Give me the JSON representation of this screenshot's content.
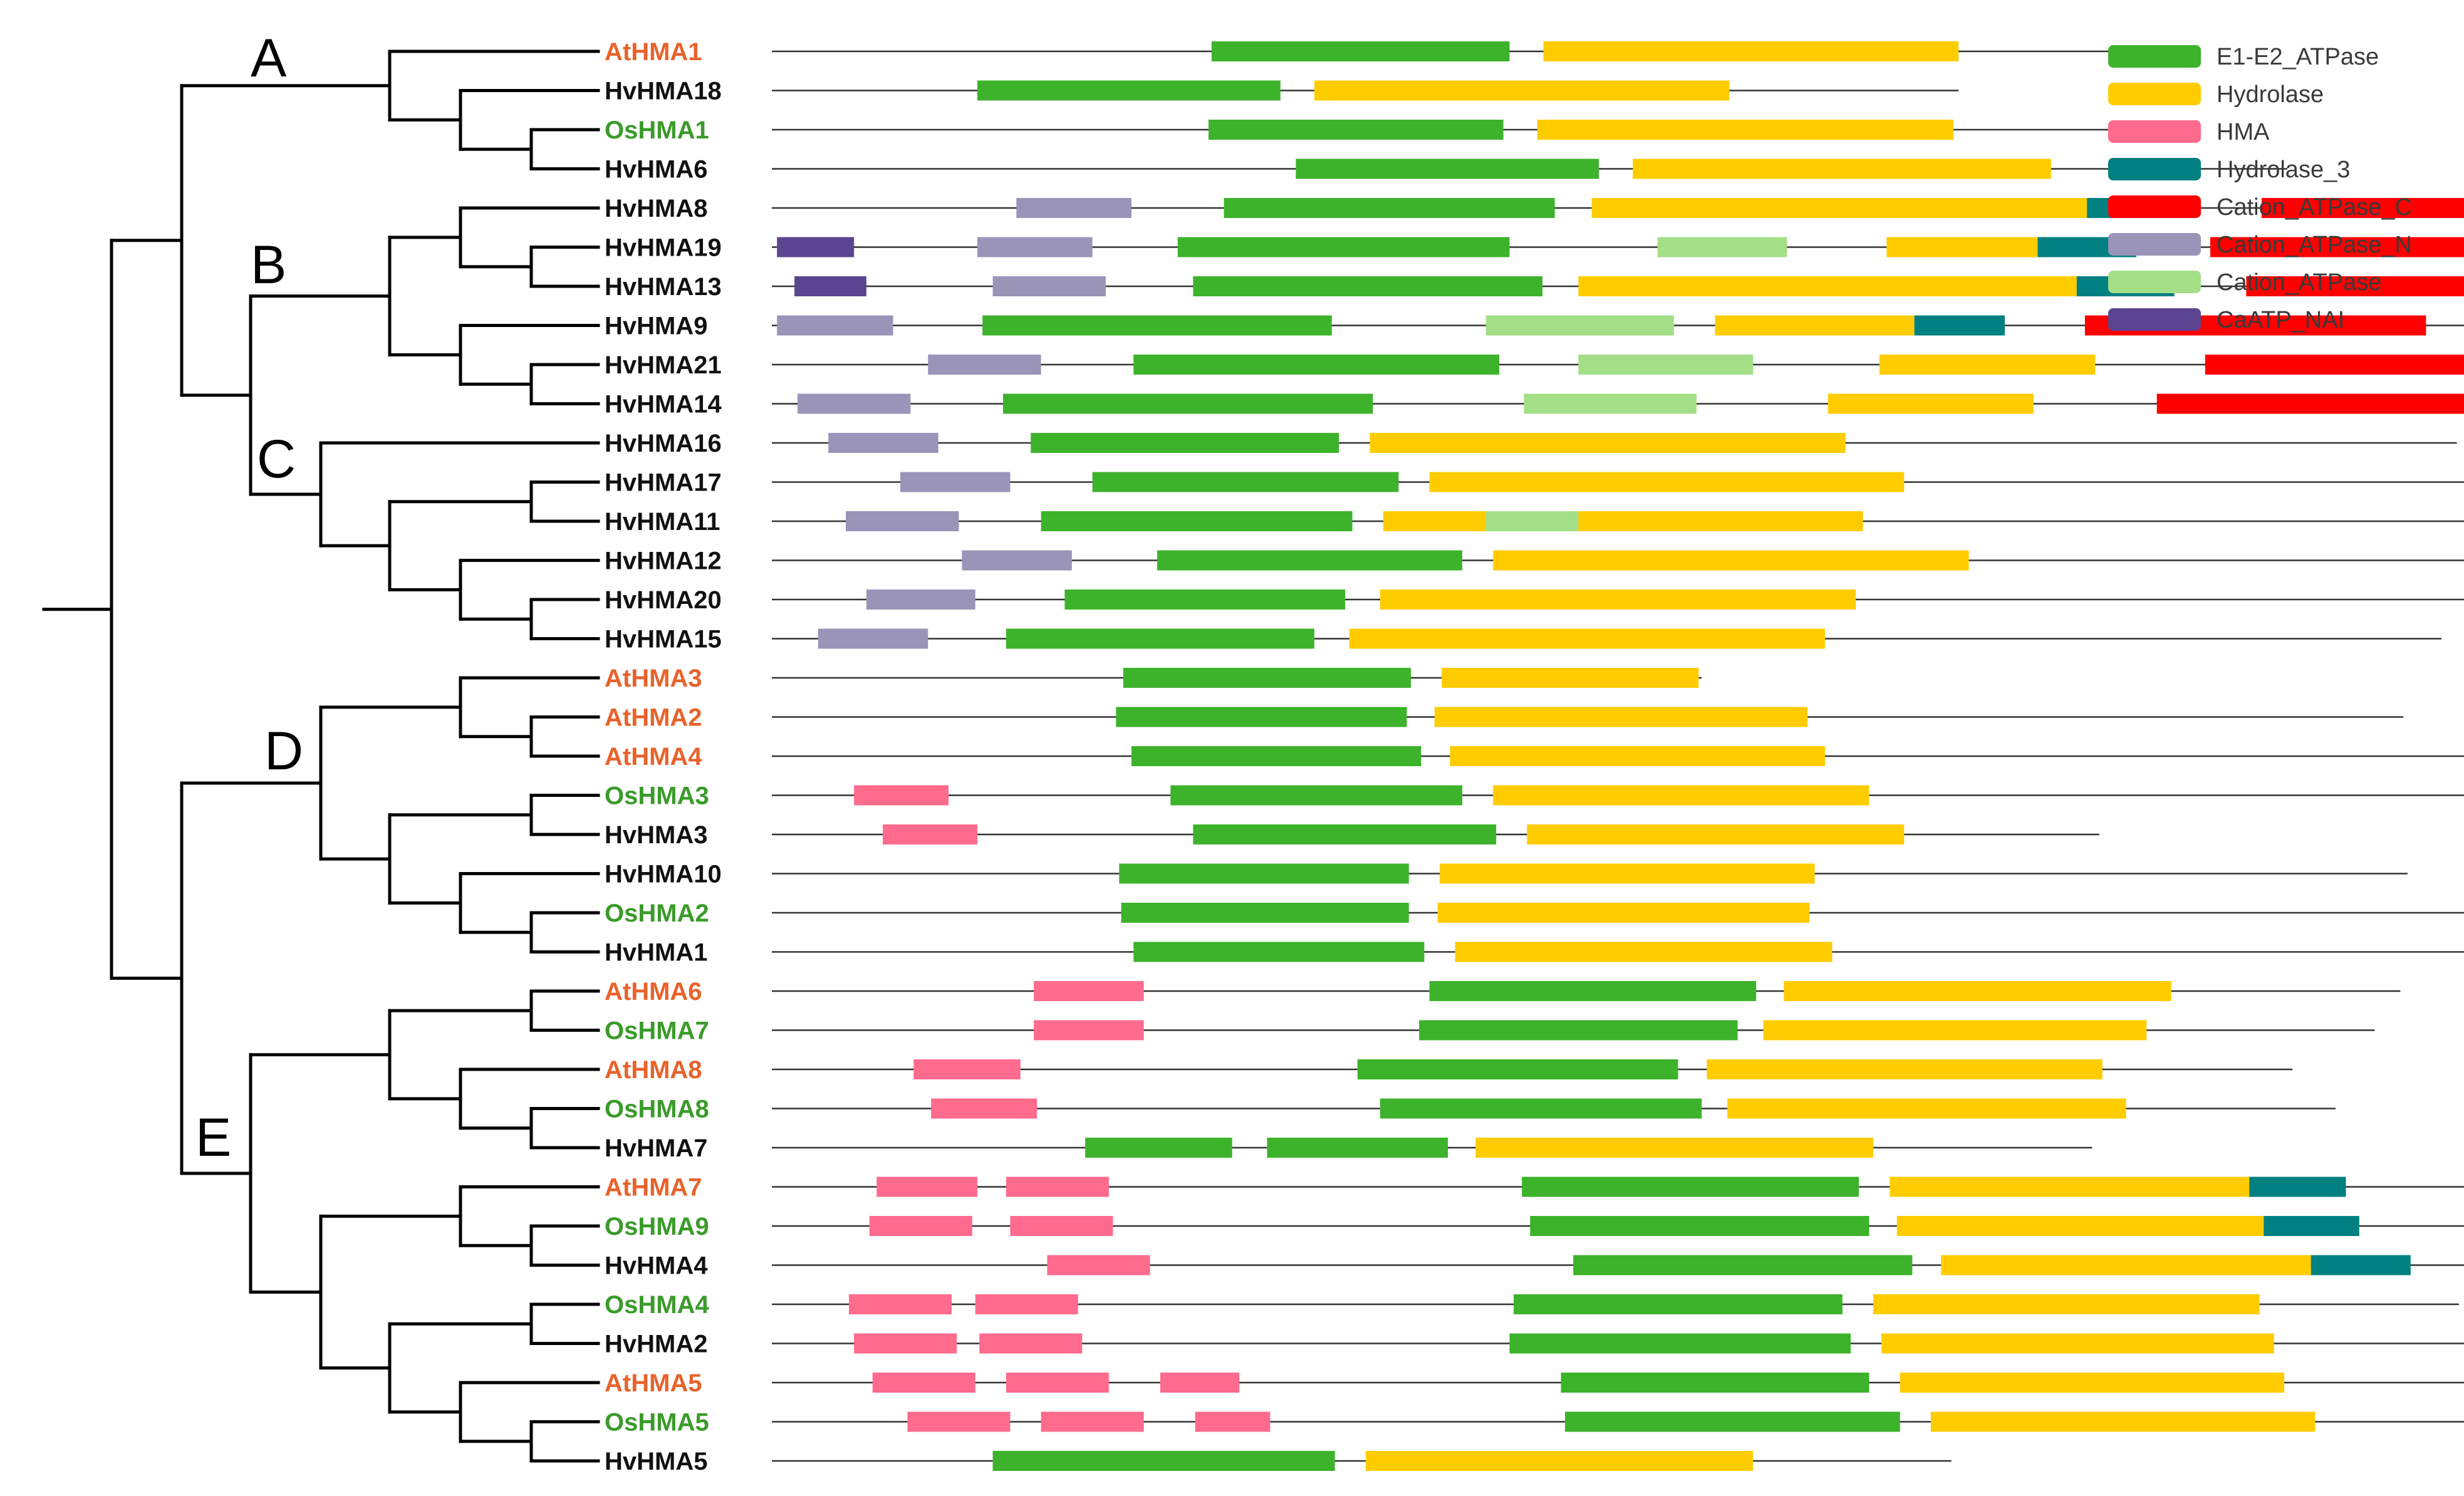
{
  "domains": {
    "E1-E2_ATPase": {
      "label": "E1-E2_ATPase",
      "color": "#3cb32b"
    },
    "Hydrolase": {
      "label": "Hydrolase",
      "color": "#ffcc00"
    },
    "HMA": {
      "label": "HMA",
      "color": "#ff6b8c"
    },
    "Hydrolase_3": {
      "label": "Hydrolase_3",
      "color": "#008080"
    },
    "Cation_ATPase_C": {
      "label": "Cation_ATPase_C",
      "color": "#ff0000"
    },
    "Cation_ATPase_N": {
      "label": "Cation_ATPase_N",
      "color": "#9a95b8"
    },
    "Cation_ATPase": {
      "label": "Cation_ATPase",
      "color": "#a3df86"
    },
    "CaATP_NAI": {
      "label": "CaATP_NAI",
      "color": "#5c4590"
    }
  },
  "legend_order": [
    "E1-E2_ATPase",
    "Hydrolase",
    "HMA",
    "Hydrolase_3",
    "Cation_ATPase_C",
    "Cation_ATPase_N",
    "Cation_ATPase",
    "CaATP_NAI"
  ],
  "species_colors": {
    "At": "#e8632b",
    "Os": "#3a9b2a",
    "Hv": "#111111"
  },
  "clades": [
    "A",
    "B",
    "C",
    "D",
    "E"
  ],
  "genes": [
    {
      "name": "AtHMA1",
      "species": "At",
      "length": 1375,
      "domains": [
        [
          "E1-E2_ATPase",
          428,
          718
        ],
        [
          "Hydrolase",
          751,
          1155
        ]
      ]
    },
    {
      "name": "HvHMA18",
      "species": "Hv",
      "length": 1155,
      "domains": [
        [
          "E1-E2_ATPase",
          200,
          495
        ],
        [
          "Hydrolase",
          528,
          932
        ]
      ]
    },
    {
      "name": "OsHMA1",
      "species": "Os",
      "length": 1378,
      "domains": [
        [
          "E1-E2_ATPase",
          425,
          712
        ],
        [
          "Hydrolase",
          745,
          1150
        ]
      ]
    },
    {
      "name": "HvHMA6",
      "species": "Hv",
      "length": 1475,
      "domains": [
        [
          "E1-E2_ATPase",
          510,
          805
        ],
        [
          "Hydrolase",
          838,
          1245
        ]
      ]
    },
    {
      "name": "HvHMA8",
      "species": "Hv",
      "length": 1775,
      "domains": [
        [
          "Cation_ATPase_N",
          238,
          350
        ],
        [
          "E1-E2_ATPase",
          440,
          762
        ],
        [
          "Hydrolase",
          798,
          1280
        ],
        [
          "Hydrolase_3",
          1280,
          1375
        ],
        [
          "Cation_ATPase_C",
          1450,
          1742
        ]
      ]
    },
    {
      "name": "HvHMA19",
      "species": "Hv",
      "length": 1712,
      "domains": [
        [
          "CaATP_NAI",
          5,
          80
        ],
        [
          "Cation_ATPase_N",
          200,
          312
        ],
        [
          "E1-E2_ATPase",
          395,
          718
        ],
        [
          "Cation_ATPase",
          862,
          988
        ],
        [
          "Hydrolase",
          1085,
          1232
        ],
        [
          "Hydrolase_3",
          1232,
          1328
        ],
        [
          "Cation_ATPase_C",
          1400,
          1690
        ]
      ]
    },
    {
      "name": "HvHMA13",
      "species": "Hv",
      "length": 1745,
      "domains": [
        [
          "CaATP_NAI",
          22,
          92
        ],
        [
          "Cation_ATPase_N",
          215,
          325
        ],
        [
          "E1-E2_ATPase",
          410,
          750
        ],
        [
          "Hydrolase",
          785,
          1270
        ],
        [
          "Hydrolase_3",
          1270,
          1365
        ],
        [
          "Cation_ATPase_C",
          1435,
          1725
        ]
      ]
    },
    {
      "name": "HvHMA9",
      "species": "Hv",
      "length": 1718,
      "domains": [
        [
          "Cation_ATPase_N",
          5,
          118
        ],
        [
          "E1-E2_ATPase",
          205,
          545
        ],
        [
          "Cation_ATPase",
          695,
          878
        ],
        [
          "Hydrolase",
          918,
          1112
        ],
        [
          "Hydrolase_3",
          1112,
          1200
        ],
        [
          "Cation_ATPase_C",
          1278,
          1610
        ]
      ]
    },
    {
      "name": "HvHMA21",
      "species": "Hv",
      "length": 1795,
      "domains": [
        [
          "Cation_ATPase_N",
          152,
          262
        ],
        [
          "E1-E2_ATPase",
          352,
          708
        ],
        [
          "Cation_ATPase",
          785,
          955
        ],
        [
          "Hydrolase",
          1078,
          1288
        ],
        [
          "Cation_ATPase_C",
          1395,
          1770
        ]
      ]
    },
    {
      "name": "HvHMA14",
      "species": "Hv",
      "length": 1762,
      "domains": [
        [
          "Cation_ATPase_N",
          25,
          135
        ],
        [
          "E1-E2_ATPase",
          225,
          585
        ],
        [
          "Cation_ATPase",
          732,
          900
        ],
        [
          "Hydrolase",
          1028,
          1228
        ],
        [
          "Cation_ATPase_C",
          1348,
          1728
        ]
      ]
    },
    {
      "name": "HvHMA16",
      "species": "Hv",
      "length": 1640,
      "domains": [
        [
          "Cation_ATPase_N",
          55,
          162
        ],
        [
          "E1-E2_ATPase",
          252,
          552
        ],
        [
          "Hydrolase",
          582,
          1045
        ]
      ]
    },
    {
      "name": "HvHMA17",
      "species": "Hv",
      "length": 1688,
      "domains": [
        [
          "Cation_ATPase_N",
          125,
          232
        ],
        [
          "E1-E2_ATPase",
          312,
          610
        ],
        [
          "Hydrolase",
          640,
          1102
        ]
      ]
    },
    {
      "name": "HvHMA11",
      "species": "Hv",
      "length": 1652,
      "domains": [
        [
          "Cation_ATPase_N",
          72,
          182
        ],
        [
          "E1-E2_ATPase",
          262,
          565
        ],
        [
          "Hydrolase",
          595,
          695
        ],
        [
          "Cation_ATPase",
          695,
          785
        ],
        [
          "Hydrolase",
          785,
          1062
        ]
      ]
    },
    {
      "name": "HvHMA12",
      "species": "Hv",
      "length": 1750,
      "domains": [
        [
          "Cation_ATPase_N",
          185,
          292
        ],
        [
          "E1-E2_ATPase",
          375,
          672
        ],
        [
          "Hydrolase",
          702,
          1165
        ]
      ]
    },
    {
      "name": "HvHMA20",
      "species": "Hv",
      "length": 1658,
      "domains": [
        [
          "Cation_ATPase_N",
          92,
          198
        ],
        [
          "E1-E2_ATPase",
          285,
          558
        ],
        [
          "Hydrolase",
          592,
          1055
        ]
      ]
    },
    {
      "name": "HvHMA15",
      "species": "Hv",
      "length": 1625,
      "domains": [
        [
          "Cation_ATPase_N",
          45,
          152
        ],
        [
          "E1-E2_ATPase",
          228,
          528
        ],
        [
          "Hydrolase",
          562,
          1025
        ]
      ]
    },
    {
      "name": "AtHMA3",
      "species": "At",
      "length": 905,
      "domains": [
        [
          "E1-E2_ATPase",
          342,
          622
        ],
        [
          "Hydrolase",
          652,
          902
        ]
      ]
    },
    {
      "name": "AtHMA2",
      "species": "At",
      "length": 1588,
      "domains": [
        [
          "E1-E2_ATPase",
          335,
          618
        ],
        [
          "Hydrolase",
          645,
          1008
        ]
      ]
    },
    {
      "name": "AtHMA4",
      "species": "At",
      "length": 1962,
      "domains": [
        [
          "E1-E2_ATPase",
          350,
          632
        ],
        [
          "Hydrolase",
          660,
          1025
        ]
      ]
    },
    {
      "name": "OsHMA3",
      "species": "Os",
      "length": 1665,
      "domains": [
        [
          "HMA",
          80,
          172
        ],
        [
          "E1-E2_ATPase",
          388,
          672
        ],
        [
          "Hydrolase",
          702,
          1068
        ]
      ]
    },
    {
      "name": "HvHMA3",
      "species": "Hv",
      "length": 1292,
      "domains": [
        [
          "HMA",
          108,
          200
        ],
        [
          "E1-E2_ATPase",
          410,
          705
        ],
        [
          "Hydrolase",
          735,
          1102
        ]
      ]
    },
    {
      "name": "HvHMA10",
      "species": "Hv",
      "length": 1592,
      "domains": [
        [
          "E1-E2_ATPase",
          338,
          620
        ],
        [
          "Hydrolase",
          650,
          1015
        ]
      ]
    },
    {
      "name": "OsHMA2",
      "species": "Os",
      "length": 1775,
      "domains": [
        [
          "E1-E2_ATPase",
          340,
          620
        ],
        [
          "Hydrolase",
          648,
          1010
        ]
      ]
    },
    {
      "name": "HvHMA1",
      "species": "Hv",
      "length": 1705,
      "domains": [
        [
          "E1-E2_ATPase",
          352,
          635
        ],
        [
          "Hydrolase",
          665,
          1032
        ]
      ]
    },
    {
      "name": "AtHMA6",
      "species": "At",
      "length": 1585,
      "domains": [
        [
          "HMA",
          255,
          362
        ],
        [
          "E1-E2_ATPase",
          640,
          958
        ],
        [
          "Hydrolase",
          985,
          1362
        ]
      ]
    },
    {
      "name": "OsHMA7",
      "species": "Os",
      "length": 1560,
      "domains": [
        [
          "HMA",
          255,
          362
        ],
        [
          "E1-E2_ATPase",
          630,
          940
        ],
        [
          "Hydrolase",
          965,
          1338
        ]
      ]
    },
    {
      "name": "AtHMA8",
      "species": "At",
      "length": 1480,
      "domains": [
        [
          "HMA",
          138,
          242
        ],
        [
          "E1-E2_ATPase",
          570,
          882
        ],
        [
          "Hydrolase",
          910,
          1295
        ]
      ]
    },
    {
      "name": "OsHMA8",
      "species": "Os",
      "length": 1522,
      "domains": [
        [
          "HMA",
          155,
          258
        ],
        [
          "E1-E2_ATPase",
          592,
          905
        ],
        [
          "Hydrolase",
          930,
          1318
        ]
      ]
    },
    {
      "name": "HvHMA7",
      "species": "Hv",
      "length": 1285,
      "domains": [
        [
          "E1-E2_ATPase",
          305,
          448
        ],
        [
          "E1-E2_ATPase",
          482,
          658
        ],
        [
          "Hydrolase",
          685,
          1072
        ]
      ]
    },
    {
      "name": "AtHMA7",
      "species": "At",
      "length": 1675,
      "domains": [
        [
          "HMA",
          102,
          200
        ],
        [
          "HMA",
          228,
          328
        ],
        [
          "E1-E2_ATPase",
          730,
          1058
        ],
        [
          "Hydrolase",
          1088,
          1438
        ],
        [
          "Hydrolase_3",
          1438,
          1532
        ]
      ]
    },
    {
      "name": "OsHMA9",
      "species": "Os",
      "length": 1688,
      "domains": [
        [
          "HMA",
          95,
          195
        ],
        [
          "HMA",
          232,
          332
        ],
        [
          "E1-E2_ATPase",
          738,
          1068
        ],
        [
          "Hydrolase",
          1095,
          1452
        ],
        [
          "Hydrolase_3",
          1452,
          1545
        ]
      ]
    },
    {
      "name": "HvHMA4",
      "species": "Hv",
      "length": 1738,
      "domains": [
        [
          "HMA",
          268,
          368
        ],
        [
          "E1-E2_ATPase",
          780,
          1110
        ],
        [
          "Hydrolase",
          1138,
          1498
        ],
        [
          "Hydrolase_3",
          1498,
          1595
        ]
      ]
    },
    {
      "name": "OsHMA4",
      "species": "Os",
      "length": 1642,
      "domains": [
        [
          "HMA",
          75,
          175
        ],
        [
          "HMA",
          198,
          298
        ],
        [
          "E1-E2_ATPase",
          722,
          1042
        ],
        [
          "Hydrolase",
          1072,
          1448
        ]
      ]
    },
    {
      "name": "HvHMA2",
      "species": "Hv",
      "length": 1665,
      "domains": [
        [
          "HMA",
          80,
          180
        ],
        [
          "HMA",
          202,
          302
        ],
        [
          "E1-E2_ATPase",
          718,
          1050
        ],
        [
          "Hydrolase",
          1080,
          1462
        ]
      ]
    },
    {
      "name": "AtHMA5",
      "species": "At",
      "length": 1662,
      "domains": [
        [
          "HMA",
          98,
          198
        ],
        [
          "HMA",
          228,
          328
        ],
        [
          "HMA",
          378,
          455
        ],
        [
          "E1-E2_ATPase",
          768,
          1068
        ],
        [
          "Hydrolase",
          1098,
          1472
        ]
      ]
    },
    {
      "name": "OsHMA5",
      "species": "Os",
      "length": 1675,
      "domains": [
        [
          "HMA",
          132,
          232
        ],
        [
          "HMA",
          262,
          362
        ],
        [
          "HMA",
          412,
          485
        ],
        [
          "E1-E2_ATPase",
          772,
          1098
        ],
        [
          "Hydrolase",
          1128,
          1502
        ]
      ]
    },
    {
      "name": "HvHMA5",
      "species": "Hv",
      "length": 1148,
      "domains": [
        [
          "E1-E2_ATPase",
          215,
          548
        ],
        [
          "Hydrolase",
          578,
          955
        ]
      ]
    }
  ]
}
